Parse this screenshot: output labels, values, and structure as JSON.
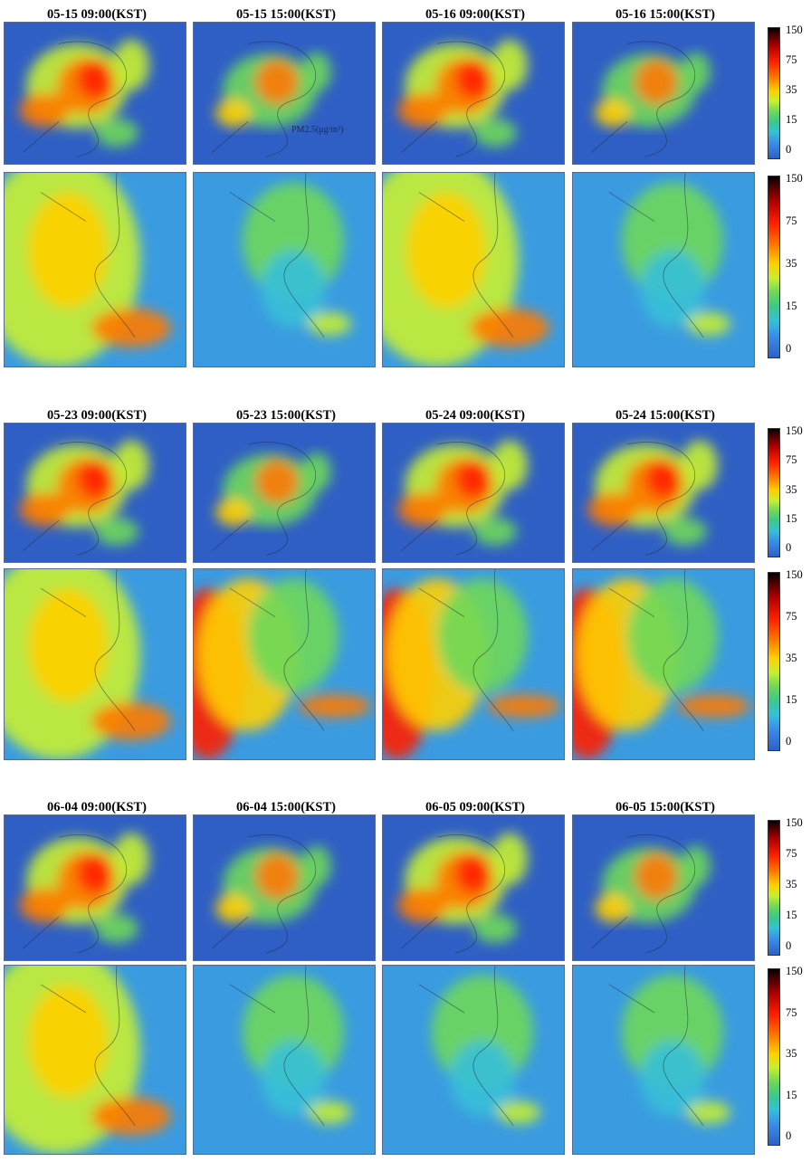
{
  "groups": [
    {
      "titles": [
        "05-15 09:00(KST)",
        "05-15 15:00(KST)",
        "05-16 09:00(KST)",
        "05-16 15:00(KST)"
      ],
      "colorbar_top": {
        "ticks": [
          "150",
          "75",
          "35",
          "15",
          "0"
        ]
      },
      "colorbar_bottom": {
        "ticks": [
          "150",
          "75",
          "35",
          "15",
          "0"
        ]
      }
    },
    {
      "titles": [
        "05-23 09:00(KST)",
        "05-23 15:00(KST)",
        "05-24 09:00(KST)",
        "05-24 15:00(KST)"
      ],
      "colorbar_top": {
        "ticks": [
          "150",
          "75",
          "35",
          "15",
          "0"
        ]
      },
      "colorbar_bottom": {
        "ticks": [
          "150",
          "75",
          "35",
          "15",
          "0"
        ]
      }
    },
    {
      "titles": [
        "06-04 09:00(KST)",
        "06-04 15:00(KST)",
        "06-05 09:00(KST)",
        "06-05 15:00(KST)"
      ],
      "colorbar_top": {
        "ticks": [
          "150",
          "75",
          "35",
          "15",
          "0"
        ]
      },
      "colorbar_bottom": {
        "ticks": [
          "150",
          "75",
          "35",
          "15",
          "0"
        ]
      }
    }
  ],
  "annotation": "PM2.5(μg/m³)",
  "colors": {
    "low": "#2f5fc4",
    "mid": "#6ed85a",
    "high": "#ff2000"
  }
}
